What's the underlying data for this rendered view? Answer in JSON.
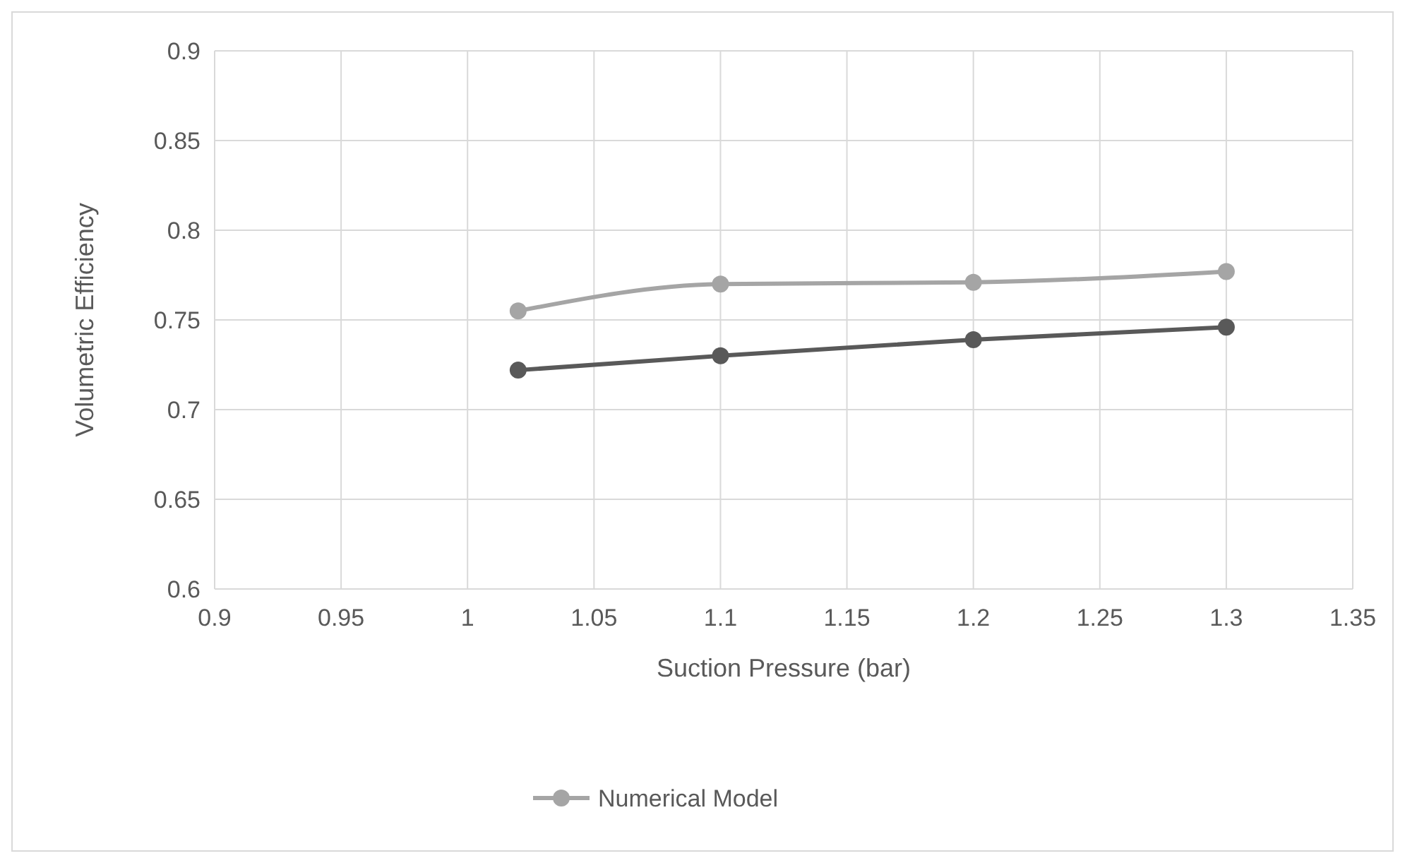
{
  "chart_data": {
    "type": "line",
    "xlabel": "Suction Pressure (bar)",
    "ylabel": "Volumetric Efficiency",
    "xlim": [
      0.9,
      1.35
    ],
    "xticks": [
      0.9,
      0.95,
      1,
      1.05,
      1.1,
      1.15,
      1.2,
      1.25,
      1.3,
      1.35
    ],
    "ylim": [
      0.6,
      0.9
    ],
    "yticks": [
      0.6,
      0.65,
      0.7,
      0.75,
      0.8,
      0.85,
      0.9
    ],
    "grid": true,
    "legend": "bottom",
    "marker": "circle",
    "line_style": "solid",
    "series": [
      {
        "color": "#595959",
        "x": [
          1.02,
          1.1,
          1.2,
          1.3
        ],
        "values": [
          0.722,
          0.73,
          0.739,
          0.746
        ]
      },
      {
        "name": "Numerical Model",
        "color": "#a5a5a5",
        "x": [
          1.02,
          1.1,
          1.2,
          1.3
        ],
        "values": [
          0.755,
          0.77,
          0.771,
          0.777
        ]
      }
    ]
  }
}
